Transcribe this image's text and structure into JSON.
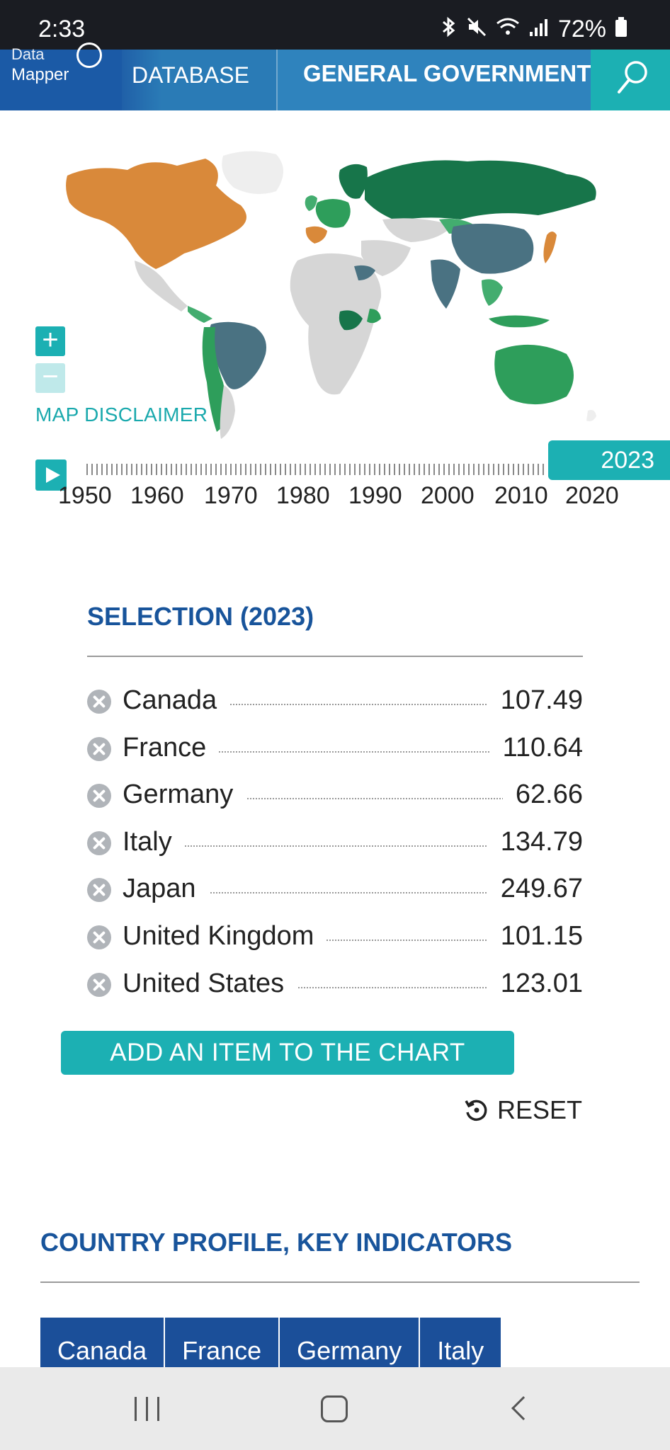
{
  "status_bar": {
    "time": "2:33",
    "battery": "72%",
    "icons": [
      "bluetooth-icon",
      "mute-icon",
      "wifi-icon",
      "signal-icon",
      "battery-icon"
    ]
  },
  "nav": {
    "brand_line1": "Data",
    "brand_line2": "Mapper",
    "database_label": "DATABASE",
    "section_label": "GENERAL GOVERNMENT",
    "search_icon": "search-icon"
  },
  "map": {
    "disclaimer_label": "MAP DISCLAIMER",
    "zoom_in_label": "+",
    "zoom_out_label": "−",
    "colors": {
      "orange": "#d9893a",
      "dark_green": "#17754a",
      "green": "#2e9e5b",
      "mid_green": "#43ad6f",
      "slate": "#4a7282",
      "gray": "#d6d6d6",
      "light_gray": "#eeeeee"
    }
  },
  "timeline": {
    "year_labels": [
      "1950",
      "1960",
      "1970",
      "1980",
      "1990",
      "2000",
      "2010",
      "2020"
    ],
    "selected_year": "2023"
  },
  "selection": {
    "title": "SELECTION (2023)",
    "items": [
      {
        "name": "Canada",
        "value": "107.49"
      },
      {
        "name": "France",
        "value": "110.64"
      },
      {
        "name": "Germany",
        "value": "62.66"
      },
      {
        "name": "Italy",
        "value": "134.79"
      },
      {
        "name": "Japan",
        "value": "249.67"
      },
      {
        "name": "United Kingdom",
        "value": "101.15"
      },
      {
        "name": "United States",
        "value": "123.01"
      }
    ],
    "add_button_label": "ADD AN ITEM TO THE CHART",
    "reset_label": "RESET"
  },
  "profile": {
    "title": "COUNTRY PROFILE, KEY INDICATORS",
    "tabs": [
      "Canada",
      "France",
      "Germany",
      "Italy"
    ]
  },
  "colors": {
    "accent_teal": "#1cb0b3",
    "heading_blue": "#18549b",
    "nav_blue": "#2a7bb6"
  }
}
